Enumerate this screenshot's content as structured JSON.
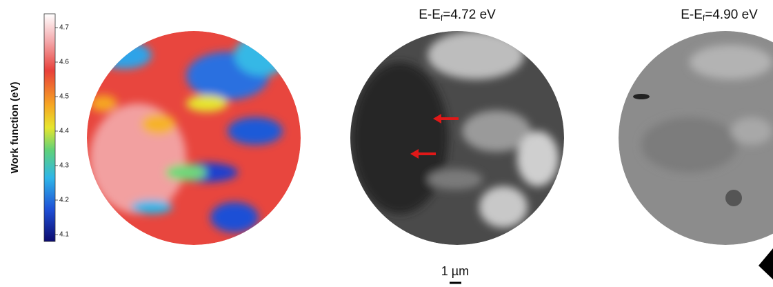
{
  "colorbar": {
    "label": "Work function (eV)",
    "lim": [
      4.08,
      4.74
    ],
    "ticks": [
      4.7,
      4.6,
      4.5,
      4.4,
      4.3,
      4.2,
      4.1
    ]
  },
  "panels": [
    {
      "prefix": "E-E",
      "subscript": "f",
      "suffix": "=4.72 eV"
    },
    {
      "prefix": "E-E",
      "subscript": "f",
      "suffix": "=4.90 eV"
    }
  ],
  "scale_bar": "1 µm"
}
